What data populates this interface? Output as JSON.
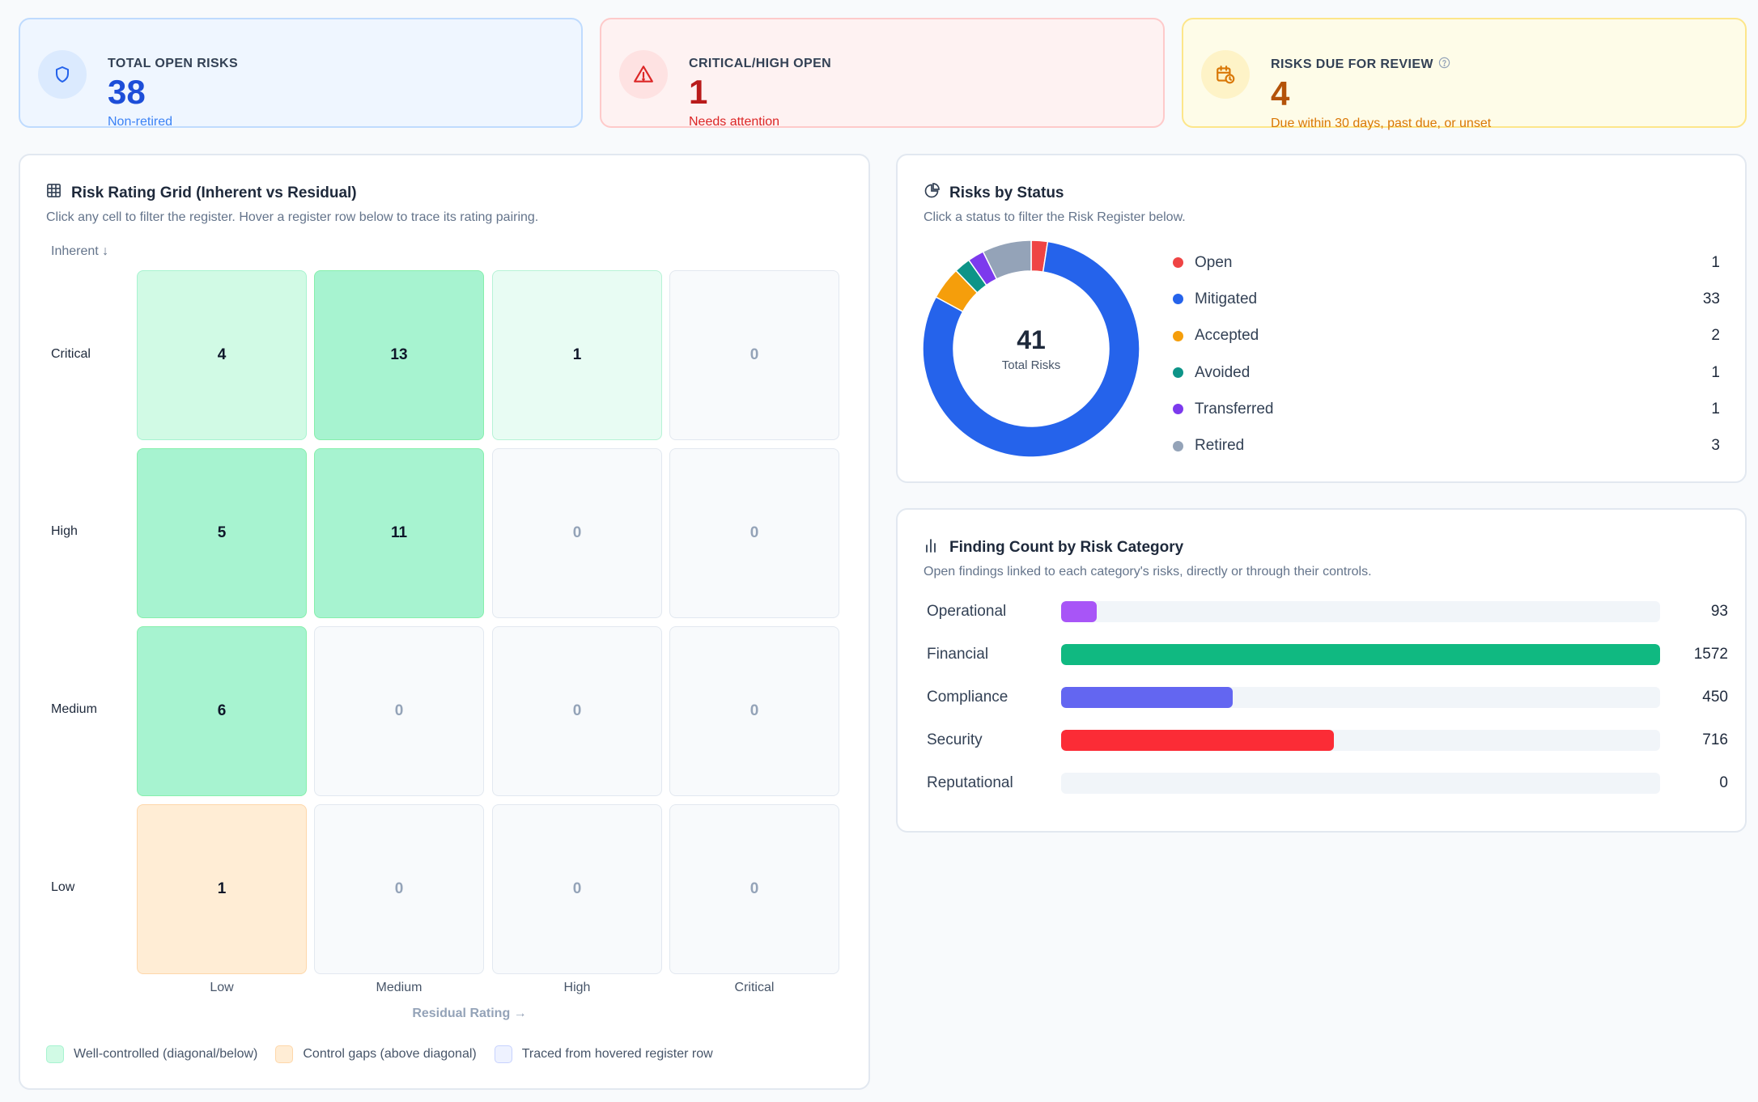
{
  "kpis": {
    "total_open": {
      "label": "TOTAL OPEN RISKS",
      "value": "38",
      "sub": "Non-retired"
    },
    "critical_high": {
      "label": "CRITICAL/HIGH OPEN",
      "value": "1",
      "sub": "Needs attention"
    },
    "due_review": {
      "label": "RISKS DUE FOR REVIEW",
      "value": "4",
      "sub": "Due within 30 days, past due, or unset"
    }
  },
  "grid": {
    "title": "Risk Rating Grid (Inherent vs Residual)",
    "desc": "Click any cell to filter the register. Hover a register row below to trace its rating pairing.",
    "y_axis_title": "Inherent ↓",
    "x_axis_title": "Residual Rating →",
    "rows": [
      "Critical",
      "High",
      "Medium",
      "Low"
    ],
    "cols": [
      "Low",
      "Medium",
      "High",
      "Critical"
    ],
    "cells": [
      [
        "4",
        "13",
        "1",
        "0"
      ],
      [
        "5",
        "11",
        "0",
        "0"
      ],
      [
        "6",
        "0",
        "0",
        "0"
      ],
      [
        "1",
        "0",
        "0",
        "0"
      ]
    ],
    "legend": {
      "well": "Well-controlled (diagonal/below)",
      "gaps": "Control gaps (above diagonal)",
      "traced": "Traced from hovered register row"
    }
  },
  "status": {
    "title": "Risks by Status",
    "desc": "Click a status to filter the Risk Register below.",
    "total": "41",
    "total_label": "Total Risks",
    "items": [
      {
        "label": "Open",
        "count": 1,
        "color": "#ef4444"
      },
      {
        "label": "Mitigated",
        "count": 33,
        "color": "#2563eb"
      },
      {
        "label": "Accepted",
        "count": 2,
        "color": "#f59e0b"
      },
      {
        "label": "Avoided",
        "count": 1,
        "color": "#0d9488"
      },
      {
        "label": "Transferred",
        "count": 1,
        "color": "#7c3aed"
      },
      {
        "label": "Retired",
        "count": 3,
        "color": "#94a3b8"
      }
    ]
  },
  "findings": {
    "title": "Finding Count by Risk Category",
    "desc": "Open findings linked to each category's risks, directly or through their controls.",
    "max": 1572,
    "items": [
      {
        "label": "Operational",
        "value": 93,
        "color": "#a855f7"
      },
      {
        "label": "Financial",
        "value": 1572,
        "color": "#10b981"
      },
      {
        "label": "Compliance",
        "value": 450,
        "color": "#6366f1"
      },
      {
        "label": "Security",
        "value": 716,
        "color": "#fb2c36"
      },
      {
        "label": "Reputational",
        "value": 0,
        "color": "#94a3b8"
      }
    ]
  }
}
